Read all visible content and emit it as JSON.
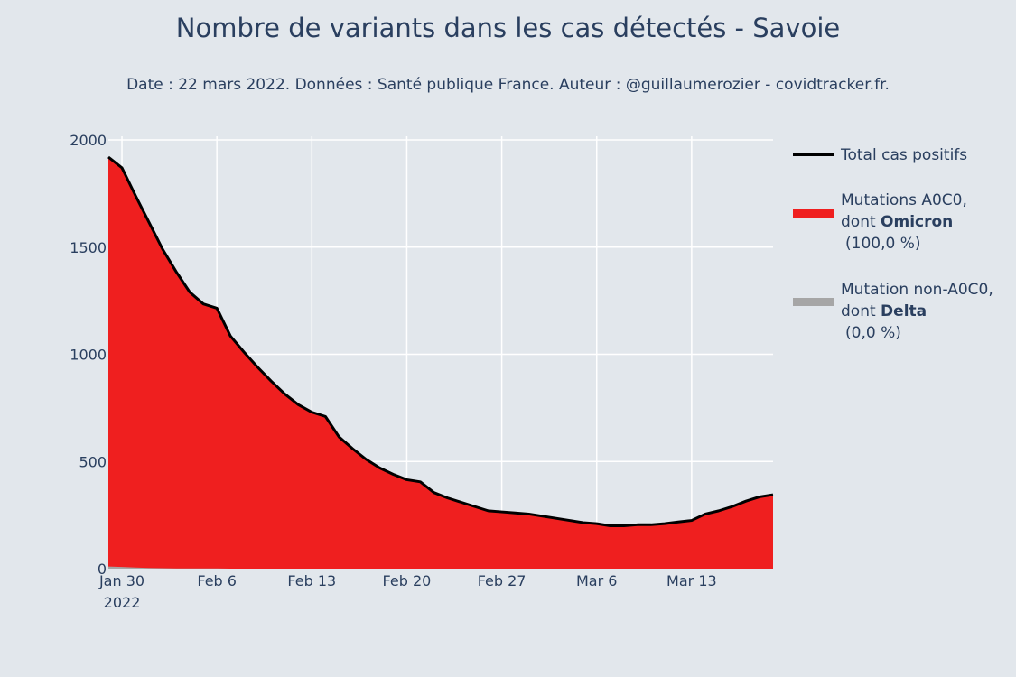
{
  "title": "Nombre de variants dans les cas détectés - Savoie",
  "subtitle": "Date : 22 mars 2022. Données : Santé publique France. Auteur : @guillaumerozier - covidtracker.fr.",
  "colors": {
    "background": "#e2e7ec",
    "grid": "#ffffff",
    "omicron": "#ef1f1f",
    "non_a0c0": "#a6a6a6",
    "total_line": "#000000",
    "text": "#2a3f5f"
  },
  "legend": {
    "total": {
      "label": "Total cas positifs"
    },
    "omicron": {
      "line1": "Mutations A0C0,",
      "line2_prefix": "dont ",
      "line2_bold": "Omicron",
      "line3": "(100,0 %)"
    },
    "delta": {
      "line1": "Mutation non-A0C0,",
      "line2_prefix": "dont ",
      "line2_bold": "Delta",
      "line3": "(0,0 %)"
    }
  },
  "chart_data": {
    "type": "area",
    "title": "Nombre de variants dans les cas détectés - Savoie",
    "x_ticks": [
      "Jan 30\n2022",
      "Feb 6",
      "Feb 13",
      "Feb 20",
      "Feb 27",
      "Mar 6",
      "Mar 13"
    ],
    "y_ticks": [
      0,
      500,
      1000,
      1500,
      2000
    ],
    "xlim": [
      "2022-01-29",
      "2022-03-19"
    ],
    "ylim": [
      0,
      2000
    ],
    "grid": true,
    "legend_position": "right",
    "x": [
      "2022-01-29",
      "2022-01-30",
      "2022-01-31",
      "2022-02-01",
      "2022-02-02",
      "2022-02-03",
      "2022-02-04",
      "2022-02-05",
      "2022-02-06",
      "2022-02-07",
      "2022-02-08",
      "2022-02-09",
      "2022-02-10",
      "2022-02-11",
      "2022-02-12",
      "2022-02-13",
      "2022-02-14",
      "2022-02-15",
      "2022-02-16",
      "2022-02-17",
      "2022-02-18",
      "2022-02-19",
      "2022-02-20",
      "2022-02-21",
      "2022-02-22",
      "2022-02-23",
      "2022-02-24",
      "2022-02-25",
      "2022-02-26",
      "2022-02-27",
      "2022-02-28",
      "2022-03-01",
      "2022-03-02",
      "2022-03-03",
      "2022-03-04",
      "2022-03-05",
      "2022-03-06",
      "2022-03-07",
      "2022-03-08",
      "2022-03-09",
      "2022-03-10",
      "2022-03-11",
      "2022-03-12",
      "2022-03-13",
      "2022-03-14",
      "2022-03-15",
      "2022-03-16",
      "2022-03-17",
      "2022-03-18",
      "2022-03-19"
    ],
    "series": [
      {
        "name": "Total cas positifs",
        "values": [
          1920,
          1870,
          1740,
          1615,
          1490,
          1385,
          1290,
          1235,
          1215,
          1085,
          1010,
          940,
          875,
          815,
          765,
          730,
          710,
          615,
          560,
          510,
          470,
          440,
          415,
          405,
          355,
          330,
          310,
          290,
          270,
          265,
          260,
          255,
          245,
          235,
          225,
          215,
          210,
          200,
          200,
          205,
          205,
          210,
          218,
          225,
          255,
          270,
          290,
          315,
          335,
          345
        ]
      },
      {
        "name": "Mutations A0C0, dont Omicron (100,0 %)",
        "values": [
          1910,
          1862,
          1735,
          1612,
          1488,
          1384,
          1289,
          1234,
          1214,
          1085,
          1010,
          940,
          875,
          815,
          765,
          730,
          710,
          615,
          560,
          510,
          470,
          440,
          415,
          405,
          355,
          330,
          310,
          290,
          270,
          265,
          260,
          255,
          245,
          235,
          225,
          215,
          210,
          200,
          200,
          205,
          205,
          210,
          218,
          225,
          255,
          270,
          290,
          315,
          335,
          345
        ]
      },
      {
        "name": "Mutation non-A0C0, dont Delta (0,0 %)",
        "values": [
          10,
          8,
          5,
          3,
          2,
          1,
          1,
          1,
          1,
          0,
          0,
          0,
          0,
          0,
          0,
          0,
          0,
          0,
          0,
          0,
          0,
          0,
          0,
          0,
          0,
          0,
          0,
          0,
          0,
          0,
          0,
          0,
          0,
          0,
          0,
          0,
          0,
          0,
          0,
          0,
          0,
          0,
          0,
          0,
          0,
          0,
          0,
          0,
          0,
          0
        ]
      }
    ]
  }
}
